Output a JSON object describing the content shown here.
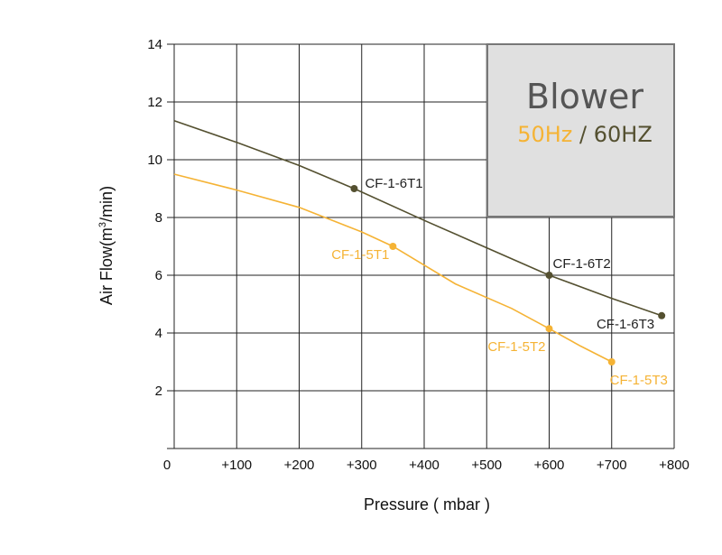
{
  "chart_data": {
    "type": "line",
    "xlabel": "Pressure ( mbar )",
    "ylabel_main": "Air Flow(m",
    "ylabel_sup": "3",
    "ylabel_end": "/min)",
    "xlim": [
      0,
      800
    ],
    "ylim": [
      0,
      14
    ],
    "x_ticks": [
      {
        "value": 0,
        "label": "0"
      },
      {
        "value": 100,
        "label": "+100"
      },
      {
        "value": 200,
        "label": "+200"
      },
      {
        "value": 300,
        "label": "+300"
      },
      {
        "value": 400,
        "label": "+400"
      },
      {
        "value": 500,
        "label": "+500"
      },
      {
        "value": 600,
        "label": "+600"
      },
      {
        "value": 700,
        "label": "+700"
      },
      {
        "value": 800,
        "label": "+800"
      }
    ],
    "y_ticks": [
      {
        "value": 2,
        "label": "2"
      },
      {
        "value": 4,
        "label": "4"
      },
      {
        "value": 6,
        "label": "6"
      },
      {
        "value": 8,
        "label": "8"
      },
      {
        "value": 10,
        "label": "10"
      },
      {
        "value": 12,
        "label": "12"
      },
      {
        "value": 14,
        "label": "14"
      }
    ],
    "grid": true,
    "series": [
      {
        "color": "#545030",
        "curve": [
          [
            0,
            11.35
          ],
          [
            100,
            10.6
          ],
          [
            200,
            9.8
          ],
          [
            288,
            9.0
          ],
          [
            400,
            7.9
          ],
          [
            500,
            6.95
          ],
          [
            600,
            6.0
          ],
          [
            700,
            5.2
          ],
          [
            780,
            4.6
          ]
        ],
        "points": [
          {
            "x": 288,
            "y": 9.0,
            "label": "CF-1-6T1"
          },
          {
            "x": 600,
            "y": 6.0,
            "label": "CF-1-6T2"
          },
          {
            "x": 780,
            "y": 4.6,
            "label": "CF-1-6T3"
          }
        ]
      },
      {
        "color": "#f5b335",
        "curve": [
          [
            0,
            9.5
          ],
          [
            100,
            8.95
          ],
          [
            200,
            8.35
          ],
          [
            300,
            7.5
          ],
          [
            350,
            7.0
          ],
          [
            450,
            5.7
          ],
          [
            540,
            4.85
          ],
          [
            600,
            4.15
          ],
          [
            650,
            3.55
          ],
          [
            700,
            3.0
          ]
        ],
        "points": [
          {
            "x": 350,
            "y": 7.0,
            "label": "CF-1-5T1"
          },
          {
            "x": 600,
            "y": 4.15,
            "label": "CF-1-5T2"
          },
          {
            "x": 700,
            "y": 3.0,
            "label": "CF-1-5T3"
          }
        ]
      }
    ],
    "legend": {
      "placement": "top-right",
      "title": "Blower",
      "hz50": "50Hz",
      "separator": " / ",
      "hz60": "60HZ",
      "hz50_color": "#f5b335",
      "hz60_color": "#545030",
      "title_color": "#555555",
      "background": "#e0e0e0",
      "border": "#777777"
    }
  }
}
